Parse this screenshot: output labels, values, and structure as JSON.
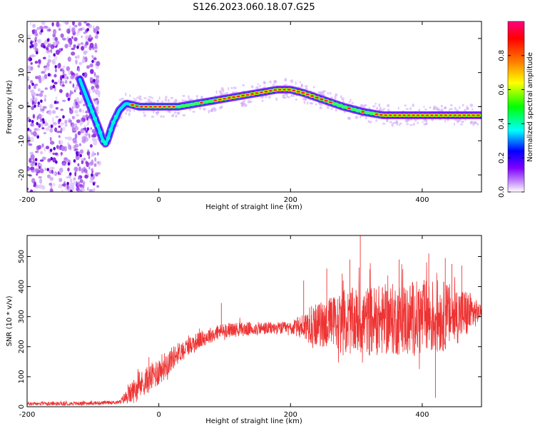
{
  "title": "S126.2023.060.18.07.G25",
  "chart_data": [
    {
      "type": "heatmap",
      "title": "S126.2023.060.18.07.G25",
      "xlabel": "Height of straight line (km)",
      "ylabel": "Frequency (Hz)",
      "xlim": [
        -200,
        490
      ],
      "ylim": [
        -25,
        25
      ],
      "xticks": [
        -200,
        0,
        200,
        400
      ],
      "xticklabels": [
        "-200",
        "0",
        "200",
        "400"
      ],
      "yticks": [
        -20,
        -10,
        0,
        10,
        20
      ],
      "yticklabels": [
        "-20",
        "-10",
        "0",
        "10",
        "20"
      ],
      "ridge": {
        "x": [
          -120,
          -110,
          -100,
          -90,
          -85,
          -80,
          -75,
          -70,
          -60,
          -50,
          -40,
          -30,
          0,
          30,
          60,
          90,
          120,
          150,
          180,
          200,
          220,
          250,
          280,
          310,
          340,
          370,
          400,
          430,
          460,
          490
        ],
        "y": [
          8,
          3,
          -2,
          -7,
          -10,
          -11,
          -8,
          -5,
          -1,
          1,
          0.5,
          0,
          0,
          0,
          1,
          2,
          3,
          4,
          5,
          5,
          4,
          2,
          0,
          -1.5,
          -2.5,
          -2.5,
          -2.5,
          -2.5,
          -2.5,
          -2.5
        ]
      },
      "colorbar": {
        "label": "Normalized spectral amplitude",
        "ticks": [
          0.0,
          0.2,
          0.4,
          0.6,
          0.8
        ],
        "ticklabels": [
          "0.0",
          "0.2",
          "0.4",
          "0.6",
          "0.8"
        ],
        "range": [
          0,
          1
        ],
        "colors": [
          "#ffffff",
          "#c48bff",
          "#8000ff",
          "#0000ff",
          "#00ffff",
          "#00ff00",
          "#ffff00",
          "#ff8000",
          "#ff0000",
          "#ff0080"
        ]
      }
    },
    {
      "type": "line",
      "xlabel": "Height of straight line (km)",
      "ylabel": "SNR (10 * v/v)",
      "xlim": [
        -200,
        490
      ],
      "ylim": [
        0,
        570
      ],
      "xticks": [
        -200,
        0,
        200,
        400
      ],
      "xticklabels": [
        "-200",
        "0",
        "200",
        "400"
      ],
      "yticks": [
        0,
        100,
        200,
        300,
        400,
        500
      ],
      "yticklabels": [
        "0",
        "100",
        "200",
        "300",
        "400",
        "500"
      ],
      "series": [
        {
          "name": "SNR",
          "color": "#ee3333",
          "trend_x": [
            -200,
            -150,
            -100,
            -60,
            -45,
            -30,
            -10,
            10,
            30,
            50,
            80,
            100,
            150,
            200,
            230,
            250,
            300,
            350,
            400,
            450,
            490
          ],
          "trend_y": [
            10,
            10,
            12,
            15,
            40,
            70,
            100,
            140,
            180,
            210,
            240,
            255,
            260,
            262,
            270,
            275,
            285,
            290,
            295,
            305,
            315
          ],
          "noise_x": [
            -200,
            -60,
            -40,
            0,
            40,
            100,
            200,
            230,
            280,
            350,
            420,
            470,
            490
          ],
          "noise_amp": [
            6,
            6,
            40,
            50,
            30,
            25,
            20,
            60,
            110,
            120,
            130,
            80,
            20
          ],
          "spikes_x": [
            -15,
            95,
            220,
            232,
            255,
            280,
            290,
            306,
            320,
            330,
            365,
            385,
            410,
            420,
            435,
            445,
            460
          ],
          "spikes_y": [
            165,
            345,
            420,
            335,
            460,
            420,
            490,
            570,
            170,
            390,
            490,
            415,
            510,
            30,
            495,
            475,
            470
          ]
        }
      ]
    }
  ]
}
